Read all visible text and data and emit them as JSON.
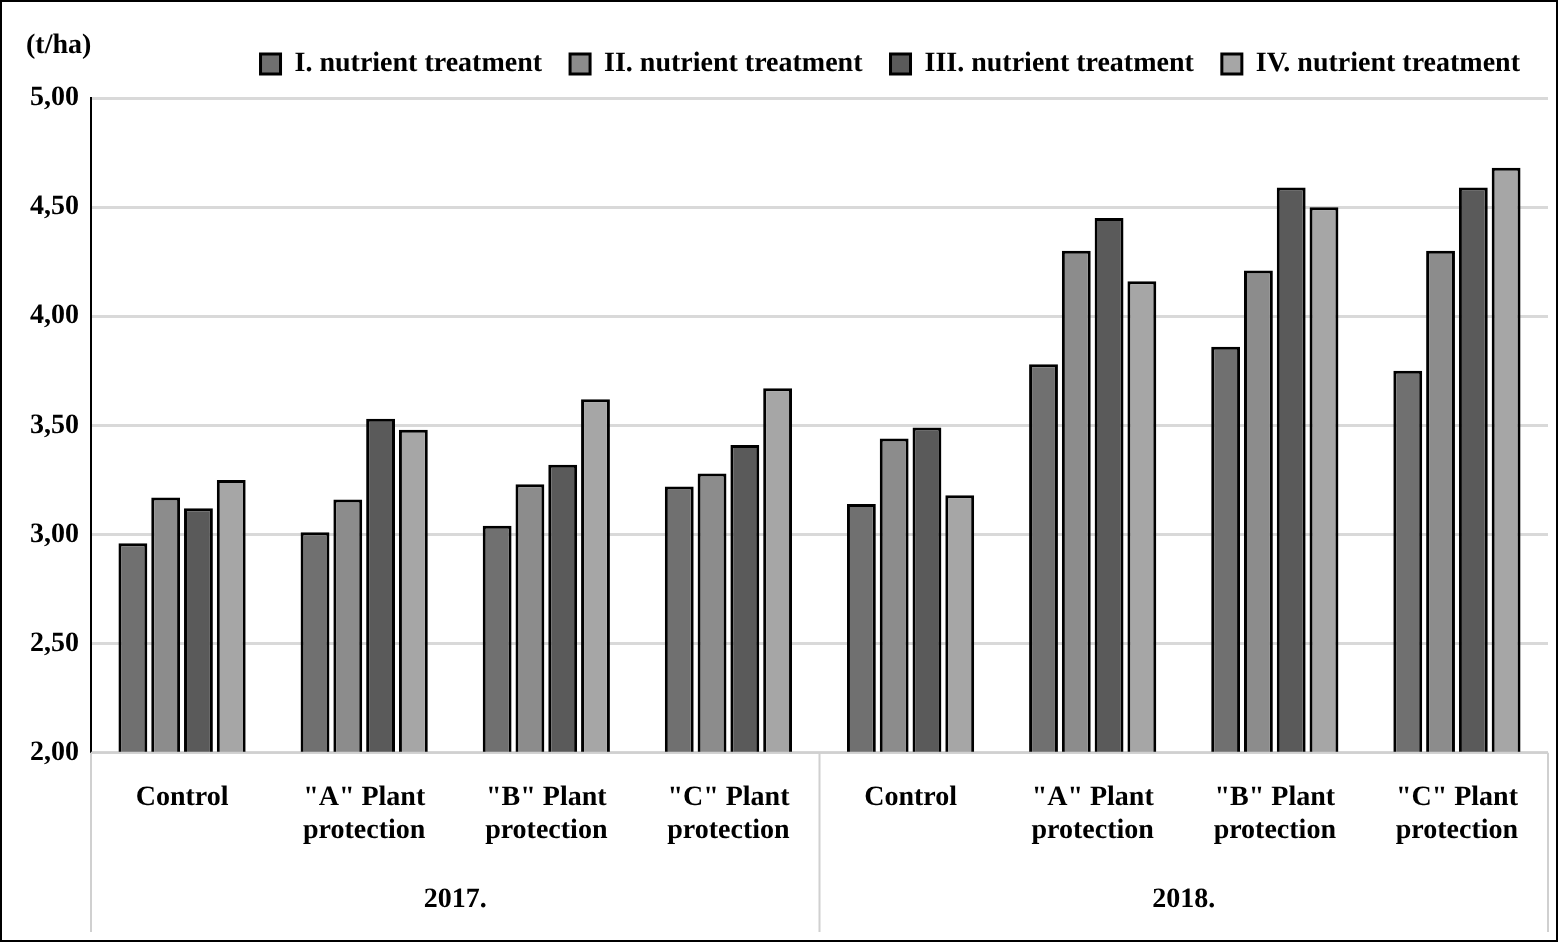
{
  "chart_data": {
    "type": "bar",
    "ylabel": "(t/ha)",
    "categories": [
      "Control",
      "\"A\" Plant protection",
      "\"B\" Plant protection",
      "\"C\" Plant protection",
      "Control",
      "\"A\" Plant protection",
      "\"B\" Plant protection",
      "\"C\" Plant protection"
    ],
    "annotations": [
      "2017.",
      "2018."
    ],
    "series": [
      {
        "name": "I. nutrient treatment",
        "color": "#707070",
        "values": [
          2.96,
          3.01,
          3.04,
          3.22,
          3.14,
          3.78,
          3.86,
          3.75
        ]
      },
      {
        "name": "II. nutrient treatment",
        "color": "#8c8c8c",
        "values": [
          3.17,
          3.16,
          3.23,
          3.28,
          3.44,
          4.3,
          4.21,
          4.3
        ]
      },
      {
        "name": "III. nutrient treatment",
        "color": "#5a5a5a",
        "values": [
          3.12,
          3.53,
          3.32,
          3.41,
          3.49,
          4.45,
          4.59,
          4.59
        ]
      },
      {
        "name": "IV. nutrient treatment",
        "color": "#a6a6a6",
        "values": [
          3.25,
          3.48,
          3.62,
          3.67,
          3.18,
          4.16,
          4.5,
          4.68
        ]
      }
    ],
    "ylim": [
      2,
      5
    ],
    "yticks": [
      {
        "value": 2,
        "label": "2,00"
      },
      {
        "value": 2.5,
        "label": "2,50"
      },
      {
        "value": 3,
        "label": "3,00"
      },
      {
        "value": 3.5,
        "label": "3,50"
      },
      {
        "value": 4,
        "label": "4,00"
      },
      {
        "value": 4.5,
        "label": "4,50"
      },
      {
        "value": 5,
        "label": "5,00"
      }
    ],
    "grid": "y",
    "legend": "top right"
  }
}
